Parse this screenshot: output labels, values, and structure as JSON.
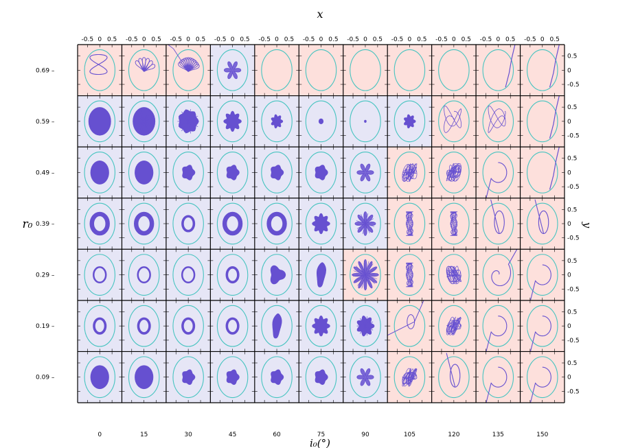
{
  "chart_data": {
    "type": "grid-of-orbit-plots",
    "title_top": "x",
    "title_right": "y",
    "xlabel": "i₀(°)",
    "ylabel": "r₀",
    "columns": [
      0,
      15,
      30,
      45,
      60,
      75,
      90,
      105,
      120,
      135,
      150
    ],
    "rows": [
      0.69,
      0.59,
      0.49,
      0.39,
      0.29,
      0.19,
      0.09
    ],
    "row_labels": [
      "0.69 –",
      "0.59 –",
      "0.49 –",
      "0.39 –",
      "0.29 –",
      "0.19 –",
      "0.09 –"
    ],
    "col_labels": [
      "0",
      "15",
      "30",
      "45",
      "60",
      "75",
      "90",
      "105",
      "120",
      "135",
      "150"
    ],
    "top_tick_labels": [
      "-0.5",
      "0",
      "0.5"
    ],
    "right_tick_labels": [
      "0.5",
      "0",
      "-0.5"
    ],
    "panel_xlim": [
      -0.9,
      0.9
    ],
    "panel_ylim": [
      -0.9,
      0.9
    ],
    "boundary_radius_x": 0.62,
    "boundary_radius_y": 0.72,
    "colors": {
      "stable_bg": "#e6e6f6",
      "unstable_bg": "#fde0dc",
      "orbit": "#6650d0",
      "boundary": "#46c4c0",
      "frame": "#000000"
    },
    "stability": [
      "UUUSUUUUUUU",
      "SSSSSSSSUUU",
      "SSSSSSSUUUU",
      "SSSSSSSUUUU",
      "SSSSSSUUUUU",
      "SSSSSSSUUUU",
      "SSSSSSSUUUU"
    ],
    "orbit_style": [
      [
        "loopA",
        "petals",
        "petalsDense",
        "star",
        "none",
        "none",
        "none",
        "none",
        "none",
        "escapeRight",
        "escapeRight"
      ],
      [
        "discHuge",
        "discHugeRays",
        "blob",
        "flower",
        "flowerSmall",
        "dotMed",
        "dotTiny",
        "flowerSmall",
        "wander",
        "wander",
        "escapeRight"
      ],
      [
        "discLarge",
        "discLarge",
        "blobSmall",
        "blobSmall",
        "blobSmall",
        "blobSmall",
        "star",
        "tangle",
        "tangle",
        "hook",
        "escapeRight"
      ],
      [
        "ringHole",
        "ringHole",
        "ring",
        "ringHole",
        "ringHole",
        "flower",
        "starRays",
        "spindle",
        "spindle",
        "loopB",
        "loopB"
      ],
      [
        "ringThin",
        "ringThin",
        "ringThin",
        "ring",
        "blobLobed",
        "blobTall",
        "starDense",
        "spindle",
        "tangle",
        "spiral",
        "hook"
      ],
      [
        "ring",
        "ring",
        "ring",
        "ring",
        "blobTall",
        "flower",
        "flowerRays",
        "escapeLoop",
        "tangle",
        "hook",
        "hook"
      ],
      [
        "discLarge",
        "discLarge",
        "blobSmall",
        "blobSmall",
        "blobSmall",
        "blobSmall",
        "star",
        "tangle",
        "loopB",
        "hook",
        "hook"
      ]
    ]
  }
}
